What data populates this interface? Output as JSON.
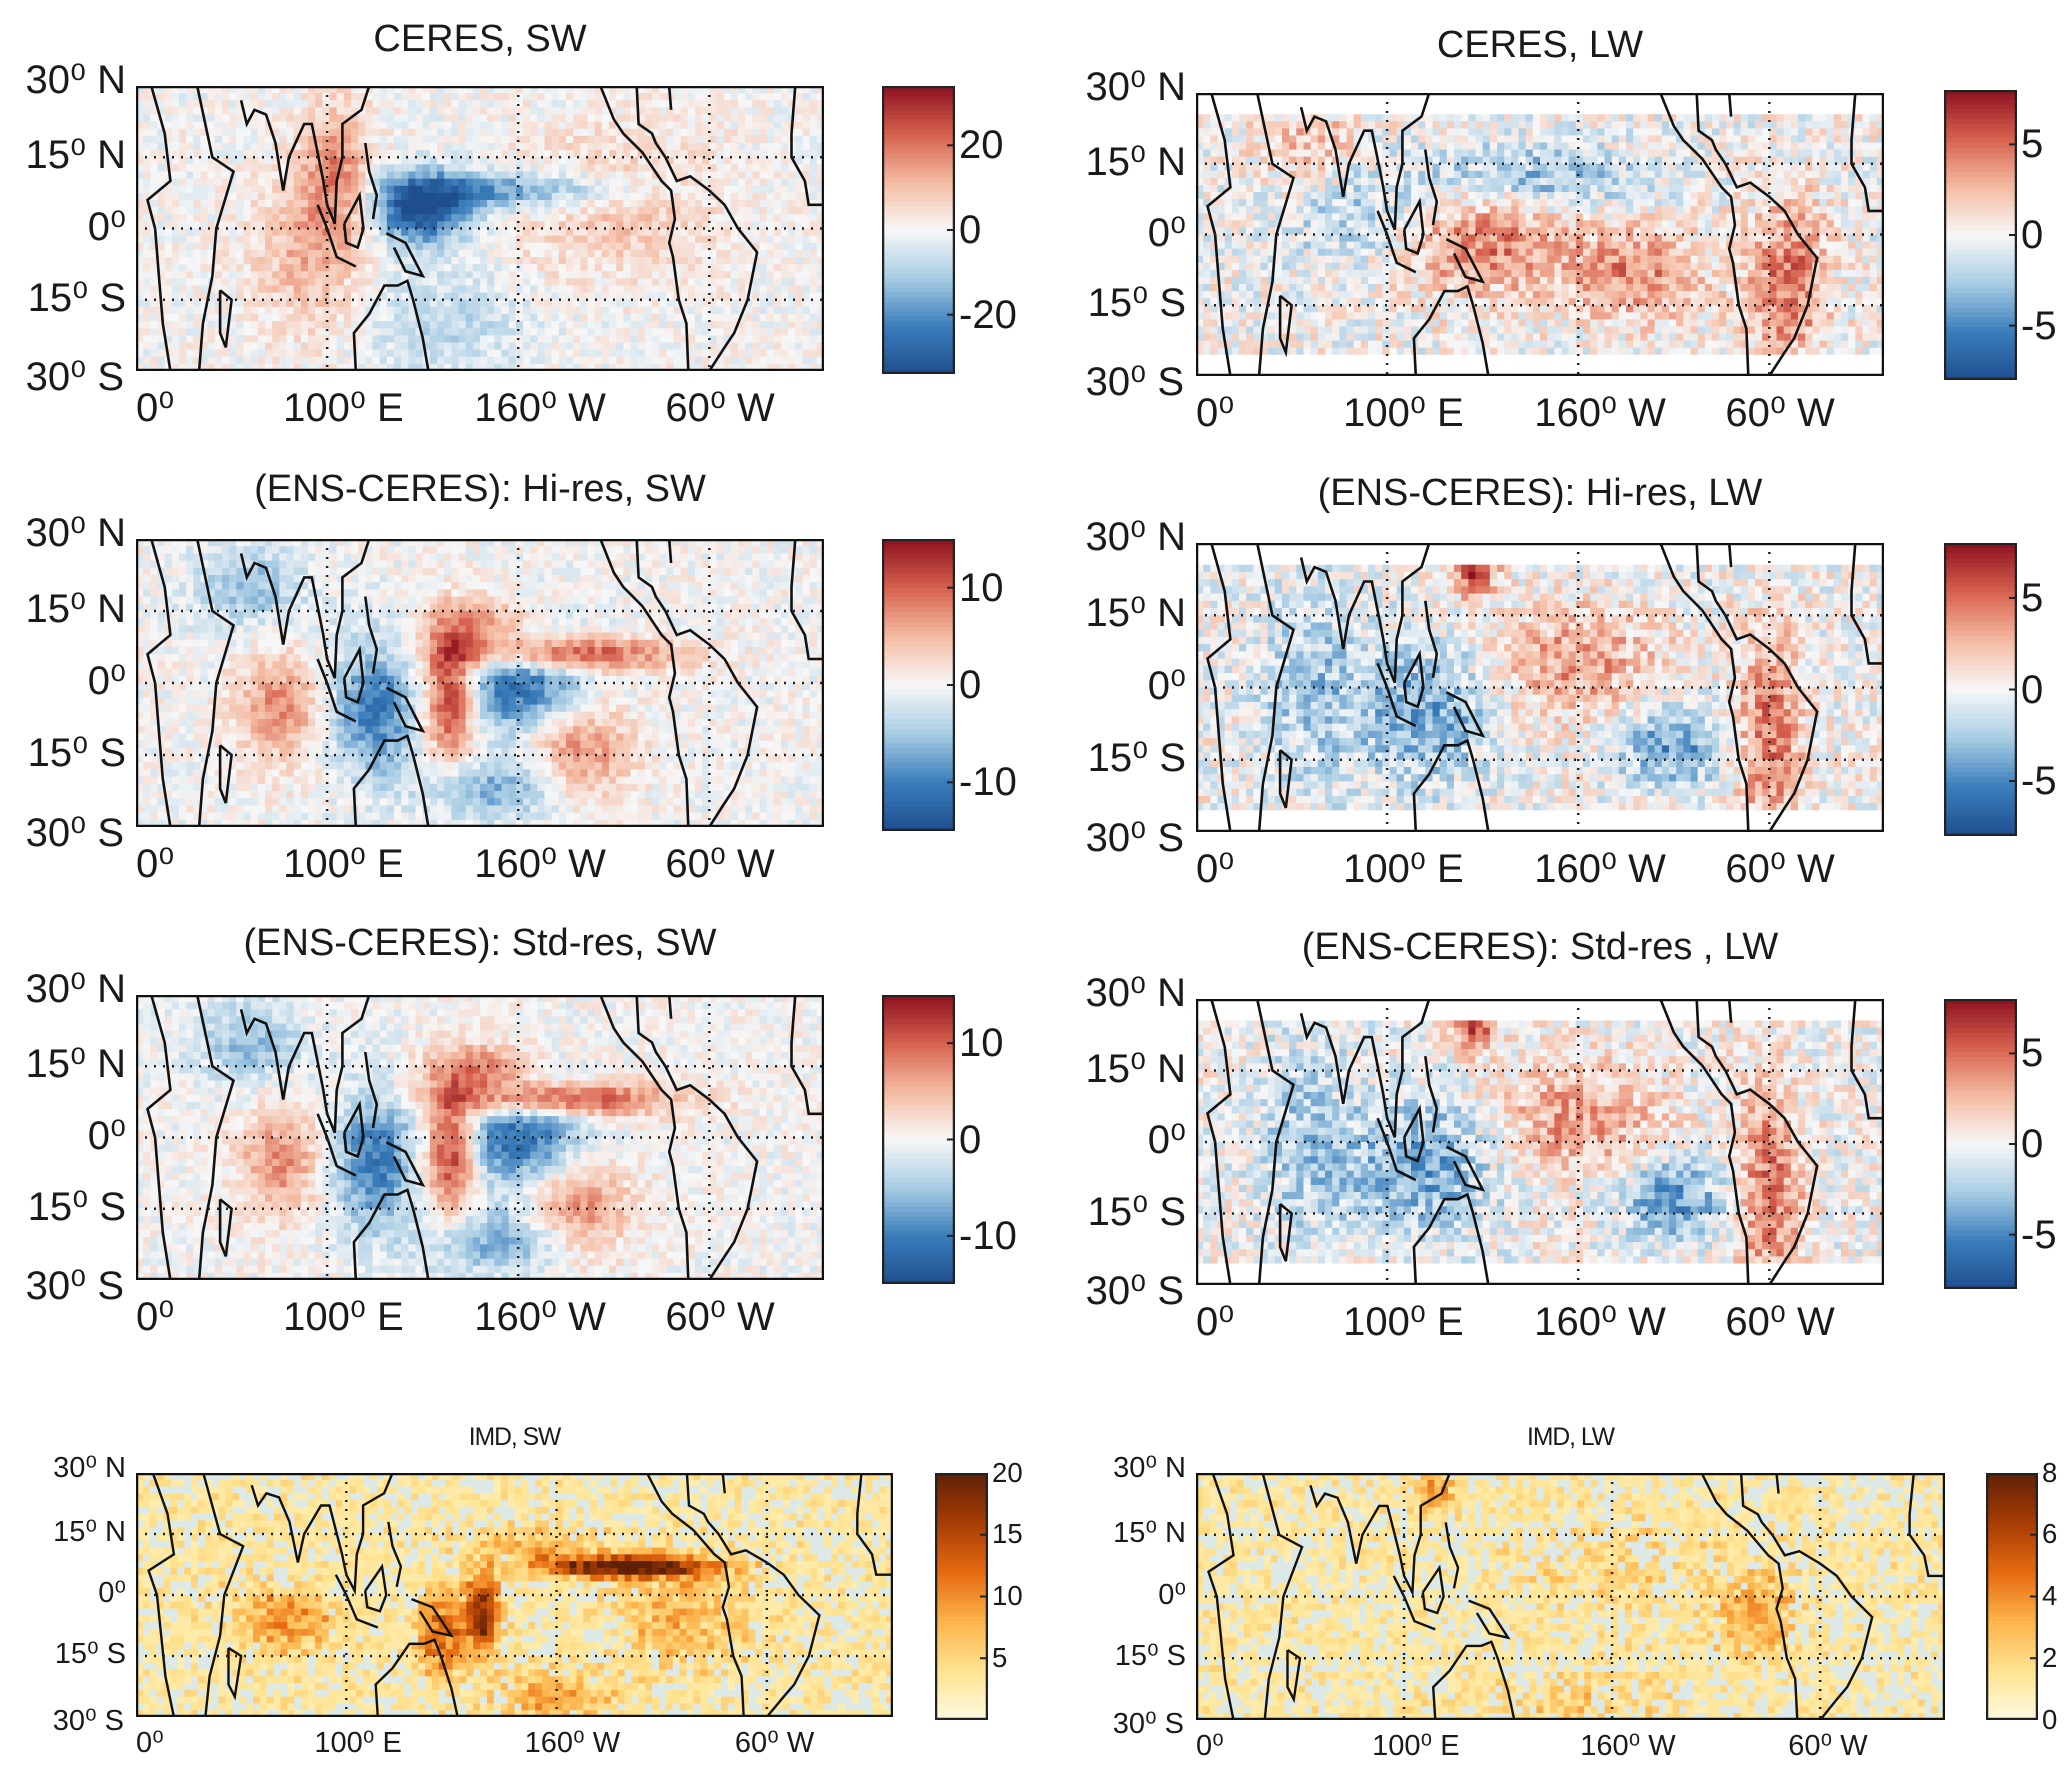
{
  "figure": {
    "panels": [
      {
        "title": "CERES, SW",
        "colormap": "diverging-blue-white-red",
        "clim": [
          -34,
          34
        ],
        "colorbar_ticks": [
          "20",
          "0",
          "-20"
        ],
        "colorbar_tick_values": [
          20,
          0,
          -20
        ],
        "lat_labels": [
          "30⁰ N",
          "15⁰ N",
          "0⁰",
          "15⁰ S",
          "30⁰ S"
        ],
        "lon_labels": [
          "0⁰",
          "100⁰ E",
          "160⁰ W",
          "60⁰ W"
        ]
      },
      {
        "title": "CERES, LW",
        "colormap": "diverging-blue-white-red",
        "clim": [
          -8,
          8
        ],
        "colorbar_ticks": [
          "5",
          "0",
          "-5"
        ],
        "colorbar_tick_values": [
          5,
          0,
          -5
        ],
        "lat_labels": [
          "30⁰ N",
          "15⁰ N",
          "0⁰",
          "15⁰ S",
          "30⁰ S"
        ],
        "lon_labels": [
          "0⁰",
          "100⁰ E",
          "160⁰ W",
          "60⁰ W"
        ]
      },
      {
        "title": "(ENS-CERES): Hi-res, SW",
        "colormap": "diverging-blue-white-red",
        "clim": [
          -15,
          15
        ],
        "colorbar_ticks": [
          "10",
          "0",
          "-10"
        ],
        "colorbar_tick_values": [
          10,
          0,
          -10
        ],
        "lat_labels": [
          "30⁰ N",
          "15⁰ N",
          "0⁰",
          "15⁰ S",
          "30⁰ S"
        ],
        "lon_labels": [
          "0⁰",
          "100⁰ E",
          "160⁰ W",
          "60⁰ W"
        ]
      },
      {
        "title": "(ENS-CERES): Hi-res, LW",
        "colormap": "diverging-blue-white-red",
        "clim": [
          -8,
          8
        ],
        "colorbar_ticks": [
          "5",
          "0",
          "-5"
        ],
        "colorbar_tick_values": [
          5,
          0,
          -5
        ],
        "lat_labels": [
          "30⁰ N",
          "15⁰ N",
          "0⁰",
          "15⁰ S",
          "30⁰ S"
        ],
        "lon_labels": [
          "0⁰",
          "100⁰ E",
          "160⁰ W",
          "60⁰ W"
        ]
      },
      {
        "title": "(ENS-CERES): Std-res, SW",
        "colormap": "diverging-blue-white-red",
        "clim": [
          -15,
          15
        ],
        "colorbar_ticks": [
          "10",
          "0",
          "-10"
        ],
        "colorbar_tick_values": [
          10,
          0,
          -10
        ],
        "lat_labels": [
          "30⁰ N",
          "15⁰ N",
          "0⁰",
          "15⁰ S",
          "30⁰ S"
        ],
        "lon_labels": [
          "0⁰",
          "100⁰ E",
          "160⁰ W",
          "60⁰ W"
        ]
      },
      {
        "title": "(ENS-CERES): Std-res , LW",
        "colormap": "diverging-blue-white-red",
        "clim": [
          -8,
          8
        ],
        "colorbar_ticks": [
          "5",
          "0",
          "-5"
        ],
        "colorbar_tick_values": [
          5,
          0,
          -5
        ],
        "lat_labels": [
          "30⁰ N",
          "15⁰ N",
          "0⁰",
          "15⁰ S",
          "30⁰ S"
        ],
        "lon_labels": [
          "0⁰",
          "100⁰ E",
          "160⁰ W",
          "60⁰ W"
        ]
      },
      {
        "title": "IMD, SW",
        "colormap": "yellow-orange-brown",
        "clim": [
          0,
          20
        ],
        "colorbar_ticks": [
          "20",
          "15",
          "10",
          "5"
        ],
        "colorbar_tick_values": [
          20,
          15,
          10,
          5
        ],
        "lat_labels": [
          "30⁰ N",
          "15⁰ N",
          "0⁰",
          "15⁰ S",
          "30⁰ S"
        ],
        "lon_labels": [
          "0⁰",
          "100⁰ E",
          "160⁰ W",
          "60⁰ W"
        ]
      },
      {
        "title": "IMD, LW",
        "colormap": "yellow-orange-brown",
        "clim": [
          0,
          8
        ],
        "colorbar_ticks": [
          "8",
          "6",
          "4",
          "2",
          "0"
        ],
        "colorbar_tick_values": [
          8,
          6,
          4,
          2,
          0
        ],
        "lat_labels": [
          "30⁰ N",
          "15⁰ N",
          "0⁰",
          "15⁰ S",
          "30⁰ S"
        ],
        "lon_labels": [
          "0⁰",
          "100⁰ E",
          "160⁰ W",
          "60⁰ W"
        ]
      }
    ],
    "axes": {
      "lon_range": [
        0,
        360
      ],
      "lat_range": [
        -30,
        30
      ],
      "grid": "dotted",
      "lat_grid": [
        15,
        0,
        -15
      ],
      "lon_ticks": [
        0,
        100,
        200,
        300
      ]
    },
    "colors": {
      "diverging": [
        "#1f4e8f",
        "#3a7dbb",
        "#a9cde4",
        "#f7f7f7",
        "#f4bba2",
        "#d6604d",
        "#8c1020"
      ],
      "sequential": [
        "#fffbe0",
        "#fee391",
        "#fdb34a",
        "#e56a10",
        "#a63c05",
        "#5e2106"
      ],
      "imd_background": "#dce9e6"
    }
  }
}
